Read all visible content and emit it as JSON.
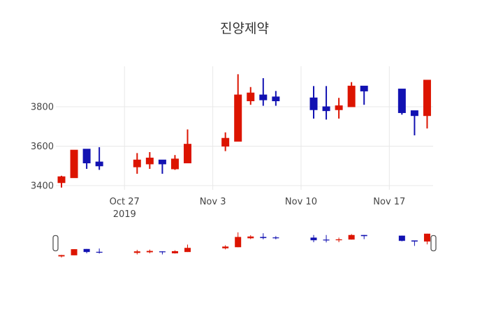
{
  "chart_data": {
    "type": "candlestick",
    "title": "진양제약",
    "x": [
      "2019-10-22",
      "2019-10-23",
      "2019-10-24",
      "2019-10-25",
      "2019-10-28",
      "2019-10-29",
      "2019-10-30",
      "2019-10-31",
      "2019-11-01",
      "2019-11-04",
      "2019-11-05",
      "2019-11-06",
      "2019-11-07",
      "2019-11-08",
      "2019-11-11",
      "2019-11-12",
      "2019-11-13",
      "2019-11-14",
      "2019-11-15",
      "2019-11-18",
      "2019-11-19",
      "2019-11-20"
    ],
    "open": [
      3415,
      3440,
      3585,
      3520,
      3495,
      3510,
      3530,
      3485,
      3515,
      3600,
      3625,
      3830,
      3860,
      3850,
      3845,
      3800,
      3785,
      3800,
      3905,
      3890,
      3780,
      3755
    ],
    "high": [
      3450,
      3580,
      3585,
      3595,
      3565,
      3570,
      3530,
      3555,
      3685,
      3670,
      3965,
      3900,
      3945,
      3880,
      3905,
      3905,
      3845,
      3925,
      3905,
      3890,
      3780,
      3935
    ],
    "low": [
      3390,
      3440,
      3485,
      3480,
      3460,
      3485,
      3460,
      3480,
      3515,
      3575,
      3625,
      3810,
      3805,
      3805,
      3740,
      3735,
      3740,
      3800,
      3810,
      3760,
      3655,
      3690
    ],
    "close": [
      3445,
      3580,
      3515,
      3500,
      3530,
      3540,
      3510,
      3535,
      3610,
      3640,
      3860,
      3870,
      3835,
      3830,
      3785,
      3780,
      3805,
      3905,
      3880,
      3770,
      3755,
      3935
    ],
    "increasing_color": "#dc1400",
    "decreasing_color": "#1212b2",
    "y_ticks": [
      3400,
      3600,
      3800
    ],
    "x_ticks": [
      {
        "date": "2019-10-27",
        "label": "Oct 27",
        "year_label": "2019"
      },
      {
        "date": "2019-11-03",
        "label": "Nov 3"
      },
      {
        "date": "2019-11-10",
        "label": "Nov 10"
      },
      {
        "date": "2019-11-17",
        "label": "Nov 17"
      }
    ],
    "ylim": [
      3380,
      4010
    ],
    "grid": true,
    "legend": false,
    "rangeslider": true
  },
  "colors": {
    "grid": "#e8e8e8",
    "tick_label": "#444444",
    "title": "#333333",
    "background": "#ffffff",
    "slider_handle_border": "#555555",
    "slider_handle_fill": "#ffffff"
  }
}
